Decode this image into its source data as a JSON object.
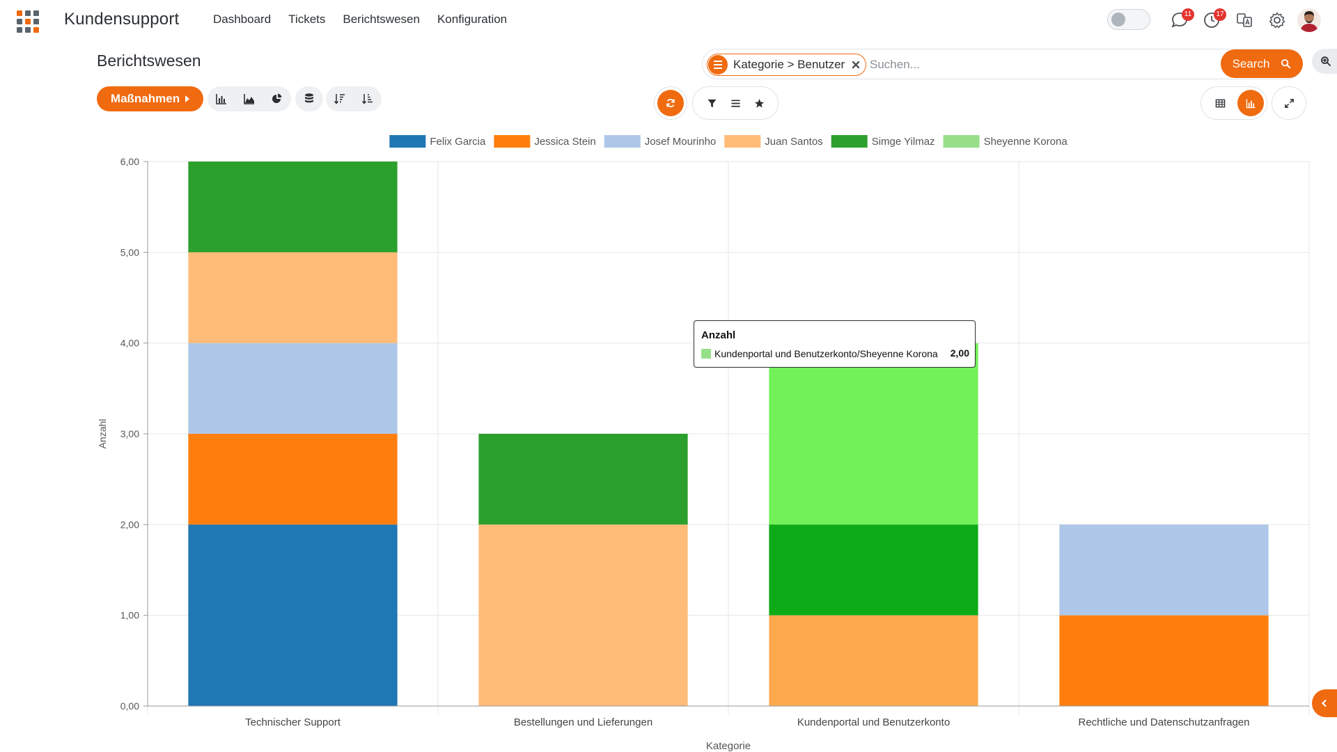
{
  "navbar": {
    "app_name": "Kundensupport",
    "menu": [
      "Dashboard",
      "Tickets",
      "Berichtswesen",
      "Konfiguration"
    ],
    "messages_badge": "11",
    "activities_badge": "17"
  },
  "control_panel": {
    "title": "Berichtswesen",
    "actions_label": "Maßnahmen",
    "search": {
      "facet_label": "Kategorie > Benutzer",
      "placeholder": "Suchen...",
      "button_label": "Search"
    }
  },
  "colors": {
    "accent": "#f06a0f"
  },
  "chart_data": {
    "type": "bar",
    "stacked": true,
    "categories": [
      "Technischer Support",
      "Bestellungen und Lieferungen",
      "Kundenportal und Benutzerkonto",
      "Rechtliche und Datenschutzanfragen"
    ],
    "series": [
      {
        "name": "Felix Garcia",
        "color": "#1f77b4",
        "values": [
          2,
          0,
          0,
          0
        ]
      },
      {
        "name": "Jessica Stein",
        "color": "#ff7f0e",
        "values": [
          1,
          0,
          0,
          1
        ]
      },
      {
        "name": "Josef Mourinho",
        "color": "#aec7e8",
        "values": [
          1,
          0,
          0,
          1
        ]
      },
      {
        "name": "Juan Santos",
        "color": "#ffbb78",
        "values": [
          1,
          2,
          1,
          0
        ]
      },
      {
        "name": "Simge Yilmaz",
        "color": "#2ca02c",
        "values": [
          1,
          1,
          1,
          0
        ]
      },
      {
        "name": "Sheyenne Korona",
        "color": "#98df8a",
        "values": [
          0,
          0,
          2,
          0
        ]
      }
    ],
    "xlabel": "Kategorie",
    "ylabel": "Anzahl",
    "ylim": [
      0,
      6
    ],
    "yticks": [
      "0,00",
      "1,00",
      "2,00",
      "3,00",
      "4,00",
      "5,00",
      "6,00"
    ],
    "grid": true,
    "legend": "top-center",
    "highlight": {
      "category": 2,
      "series": 5,
      "color": "#72f158"
    },
    "hover_colors": [
      "#1f77b4",
      "#ff7f0e",
      "#aec7e8",
      "#ffa94f",
      "#0dab17",
      "#72f158"
    ]
  },
  "tooltip": {
    "title": "Anzahl",
    "label": "Kundenportal und Benutzerkonto/Sheyenne Korona",
    "value": "2,00",
    "swatch": "#98df8a"
  }
}
